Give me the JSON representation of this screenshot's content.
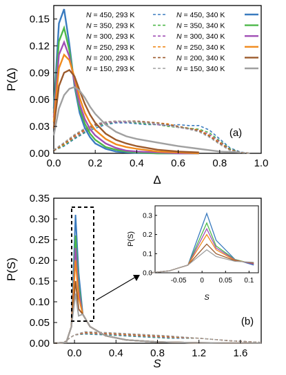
{
  "chart_data": [
    {
      "panel": "(a)",
      "type": "line",
      "xlabel": "Δ",
      "ylabel": "P(Δ)",
      "xlim": [
        0,
        1
      ],
      "ylim": [
        0,
        0.165
      ],
      "xticks": [
        "0.0",
        "0.2",
        "0.4",
        "0.6",
        "0.8",
        "1.0"
      ],
      "yticks": [
        "0.00",
        "0.03",
        "0.06",
        "0.09",
        "0.12",
        "0.15"
      ],
      "legend_position": "top-right",
      "series": [
        {
          "name": "N = 450, 293 K",
          "N": "450",
          "T": "293 K",
          "color": "#3a7bbf",
          "dashed": true,
          "x": [
            0,
            0.05,
            0.1,
            0.15,
            0.2,
            0.25,
            0.3,
            0.35,
            0.4,
            0.45,
            0.5,
            0.55,
            0.6,
            0.65,
            0.7,
            0.75,
            0.8,
            0.85,
            0.9,
            0.95
          ],
          "y": [
            0.003,
            0.008,
            0.016,
            0.023,
            0.028,
            0.032,
            0.034,
            0.034,
            0.033,
            0.032,
            0.032,
            0.031,
            0.032,
            0.031,
            0.031,
            0.026,
            0.016,
            0.006,
            0.0015,
            0
          ]
        },
        {
          "name": "N = 350, 293 K",
          "N": "350",
          "T": "293 K",
          "color": "#4db849",
          "dashed": true,
          "x": [
            0,
            0.05,
            0.1,
            0.15,
            0.2,
            0.25,
            0.3,
            0.35,
            0.4,
            0.45,
            0.5,
            0.55,
            0.6,
            0.65,
            0.7,
            0.75,
            0.8,
            0.85,
            0.9,
            0.95
          ],
          "y": [
            0.003,
            0.009,
            0.017,
            0.024,
            0.03,
            0.033,
            0.035,
            0.035,
            0.034,
            0.033,
            0.032,
            0.03,
            0.029,
            0.028,
            0.027,
            0.023,
            0.014,
            0.005,
            0.001,
            0
          ]
        },
        {
          "name": "N = 300, 293 K",
          "N": "300",
          "T": "293 K",
          "color": "#a04fb5",
          "dashed": true,
          "x": [
            0,
            0.05,
            0.1,
            0.15,
            0.2,
            0.25,
            0.3,
            0.35,
            0.4,
            0.45,
            0.5,
            0.55,
            0.6,
            0.65,
            0.7,
            0.75,
            0.8,
            0.85,
            0.9,
            0.95
          ],
          "y": [
            0.003,
            0.01,
            0.018,
            0.025,
            0.031,
            0.034,
            0.035,
            0.035,
            0.035,
            0.034,
            0.032,
            0.031,
            0.029,
            0.027,
            0.026,
            0.021,
            0.013,
            0.004,
            0.001,
            0
          ]
        },
        {
          "name": "N = 250, 293 K",
          "N": "250",
          "T": "293 K",
          "color": "#f08a1c",
          "dashed": true,
          "x": [
            0,
            0.05,
            0.1,
            0.15,
            0.2,
            0.25,
            0.3,
            0.35,
            0.4,
            0.45,
            0.5,
            0.55,
            0.6,
            0.65,
            0.7,
            0.75,
            0.8,
            0.85,
            0.9,
            0.95
          ],
          "y": [
            0.003,
            0.01,
            0.019,
            0.026,
            0.032,
            0.035,
            0.036,
            0.036,
            0.035,
            0.035,
            0.034,
            0.033,
            0.03,
            0.028,
            0.026,
            0.02,
            0.012,
            0.004,
            0.001,
            0
          ]
        },
        {
          "name": "N = 200, 293 K",
          "N": "200",
          "T": "293 K",
          "color": "#9c5a2c",
          "dashed": true,
          "x": [
            0,
            0.05,
            0.1,
            0.15,
            0.2,
            0.25,
            0.3,
            0.35,
            0.4,
            0.45,
            0.5,
            0.55,
            0.6,
            0.65,
            0.7,
            0.75,
            0.8,
            0.85,
            0.9,
            0.95
          ],
          "y": [
            0.003,
            0.011,
            0.02,
            0.027,
            0.032,
            0.035,
            0.036,
            0.036,
            0.036,
            0.035,
            0.034,
            0.032,
            0.03,
            0.028,
            0.025,
            0.019,
            0.011,
            0.004,
            0.001,
            0
          ]
        },
        {
          "name": "N = 150, 293 K",
          "N": "150",
          "T": "293 K",
          "color": "#a0a0a0",
          "dashed": true,
          "x": [
            0,
            0.05,
            0.1,
            0.15,
            0.2,
            0.25,
            0.3,
            0.35,
            0.4,
            0.45,
            0.5,
            0.55,
            0.6,
            0.65,
            0.7,
            0.75,
            0.8,
            0.85,
            0.9,
            0.95
          ],
          "y": [
            0.004,
            0.012,
            0.021,
            0.028,
            0.033,
            0.035,
            0.036,
            0.036,
            0.035,
            0.034,
            0.033,
            0.031,
            0.029,
            0.027,
            0.024,
            0.018,
            0.01,
            0.003,
            0.001,
            0
          ]
        },
        {
          "name": "N = 450, 340 K",
          "N": "450",
          "T": "340 K",
          "color": "#3a7bbf",
          "dashed": false,
          "x": [
            0,
            0.025,
            0.05,
            0.075,
            0.1,
            0.125,
            0.15,
            0.175,
            0.2,
            0.25,
            0.3,
            0.35,
            0.4,
            0.5,
            0.6,
            0.7
          ],
          "y": [
            0.05,
            0.145,
            0.161,
            0.122,
            0.075,
            0.045,
            0.028,
            0.018,
            0.011,
            0.005,
            0.002,
            0.001,
            0.0005,
            0,
            0,
            0
          ]
        },
        {
          "name": "N = 350, 340 K",
          "N": "350",
          "T": "340 K",
          "color": "#4db849",
          "dashed": false,
          "x": [
            0,
            0.025,
            0.05,
            0.075,
            0.1,
            0.125,
            0.15,
            0.175,
            0.2,
            0.25,
            0.3,
            0.35,
            0.4,
            0.5,
            0.6,
            0.7
          ],
          "y": [
            0.045,
            0.125,
            0.14,
            0.115,
            0.078,
            0.05,
            0.033,
            0.022,
            0.015,
            0.007,
            0.004,
            0.002,
            0.001,
            0,
            0,
            0
          ]
        },
        {
          "name": "N = 300, 340 K",
          "N": "300",
          "T": "340 K",
          "color": "#a04fb5",
          "dashed": false,
          "x": [
            0,
            0.025,
            0.05,
            0.075,
            0.1,
            0.125,
            0.15,
            0.175,
            0.2,
            0.25,
            0.3,
            0.35,
            0.4,
            0.5,
            0.6,
            0.7
          ],
          "y": [
            0.04,
            0.11,
            0.124,
            0.108,
            0.08,
            0.055,
            0.038,
            0.027,
            0.02,
            0.011,
            0.006,
            0.003,
            0.002,
            0.001,
            0,
            0
          ]
        },
        {
          "name": "N = 250, 340 K",
          "N": "250",
          "T": "340 K",
          "color": "#f08a1c",
          "dashed": false,
          "x": [
            0,
            0.025,
            0.05,
            0.075,
            0.1,
            0.125,
            0.15,
            0.175,
            0.2,
            0.25,
            0.3,
            0.35,
            0.4,
            0.5,
            0.6,
            0.7
          ],
          "y": [
            0.035,
            0.095,
            0.11,
            0.104,
            0.085,
            0.062,
            0.045,
            0.034,
            0.026,
            0.016,
            0.01,
            0.007,
            0.005,
            0.002,
            0.001,
            0
          ]
        },
        {
          "name": "N = 200, 340 K",
          "N": "200",
          "T": "340 K",
          "color": "#9c5a2c",
          "dashed": false,
          "x": [
            0,
            0.025,
            0.05,
            0.075,
            0.1,
            0.125,
            0.15,
            0.175,
            0.2,
            0.25,
            0.3,
            0.35,
            0.4,
            0.5,
            0.6,
            0.7
          ],
          "y": [
            0.028,
            0.075,
            0.09,
            0.093,
            0.086,
            0.07,
            0.055,
            0.043,
            0.034,
            0.022,
            0.015,
            0.011,
            0.008,
            0.004,
            0.002,
            0.001
          ]
        },
        {
          "name": "N = 150, 340 K",
          "N": "150",
          "T": "340 K",
          "color": "#a0a0a0",
          "dashed": false,
          "x": [
            0,
            0.025,
            0.05,
            0.075,
            0.1,
            0.125,
            0.15,
            0.175,
            0.2,
            0.25,
            0.3,
            0.35,
            0.4,
            0.5,
            0.6,
            0.7,
            0.8,
            0.9
          ],
          "y": [
            0.02,
            0.05,
            0.065,
            0.072,
            0.074,
            0.07,
            0.062,
            0.052,
            0.044,
            0.032,
            0.024,
            0.019,
            0.016,
            0.012,
            0.008,
            0.005,
            0.002,
            0.001
          ]
        }
      ]
    },
    {
      "panel": "(b)",
      "type": "line",
      "xlabel": "S",
      "ylabel": "P(S)",
      "xlim": [
        -0.2,
        1.8
      ],
      "ylim": [
        0,
        0.35
      ],
      "xticks": [
        "0.0",
        "0.4",
        "0.8",
        "1.2",
        "1.6"
      ],
      "yticks": [
        "0.00",
        "0.05",
        "0.10",
        "0.15",
        "0.20",
        "0.25",
        "0.30",
        "0.35"
      ],
      "peaks_340K": [
        0.31,
        0.26,
        0.23,
        0.2,
        0.15,
        0.12
      ],
      "colors": [
        "#3a7bbf",
        "#4db849",
        "#a04fb5",
        "#f08a1c",
        "#9c5a2c",
        "#a0a0a0"
      ],
      "dashed_293K_level": 0.025
    },
    {
      "panel": "(b) inset",
      "type": "line",
      "xlabel": "S",
      "ylabel": "P(S)",
      "xlim": [
        -0.1,
        0.12
      ],
      "ylim": [
        0,
        0.35
      ],
      "xticks": [
        "-0.05",
        "0",
        "0.05",
        "0.1"
      ],
      "yticks": [
        "0.0",
        "0.1",
        "0.2",
        "0.3"
      ],
      "x": [
        -0.11,
        -0.07,
        -0.03,
        0.01,
        0.03,
        0.07,
        0.11
      ],
      "series": [
        {
          "color": "#3a7bbf",
          "y": [
            0.0,
            0.01,
            0.04,
            0.31,
            0.17,
            0.07,
            0.04
          ]
        },
        {
          "color": "#4db849",
          "y": [
            0.0,
            0.01,
            0.04,
            0.26,
            0.14,
            0.07,
            0.045
          ]
        },
        {
          "color": "#a04fb5",
          "y": [
            0.0,
            0.01,
            0.04,
            0.23,
            0.13,
            0.068,
            0.045
          ]
        },
        {
          "color": "#f08a1c",
          "y": [
            0.0,
            0.01,
            0.04,
            0.2,
            0.12,
            0.065,
            0.05
          ]
        },
        {
          "color": "#9c5a2c",
          "y": [
            0.0,
            0.01,
            0.04,
            0.15,
            0.1,
            0.063,
            0.05
          ]
        },
        {
          "color": "#a0a0a0",
          "y": [
            0.0,
            0.01,
            0.04,
            0.12,
            0.085,
            0.06,
            0.055
          ]
        }
      ]
    }
  ]
}
